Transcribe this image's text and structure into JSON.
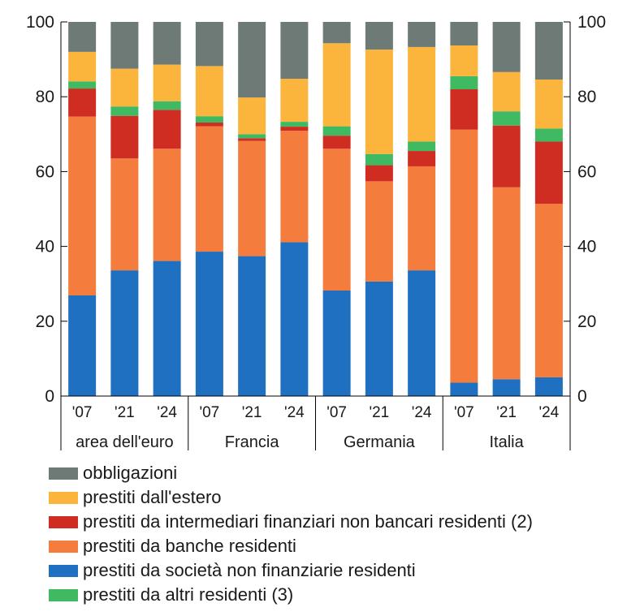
{
  "chart_data": {
    "type": "bar",
    "stacked": true,
    "title": "",
    "xlabel": "",
    "ylabel": "",
    "ylim": [
      0,
      100
    ],
    "yticks": [
      0,
      20,
      40,
      60,
      80,
      100
    ],
    "secondary_axis": true,
    "grid": false,
    "legend_position": "bottom",
    "groups": [
      {
        "name": "area dell'euro",
        "categories": [
          "'07",
          "'21",
          "'24"
        ]
      },
      {
        "name": "Francia",
        "categories": [
          "'07",
          "'21",
          "'24"
        ]
      },
      {
        "name": "Germania",
        "categories": [
          "'07",
          "'21",
          "'24"
        ]
      },
      {
        "name": "Italia",
        "categories": [
          "'07",
          "'21",
          "'24"
        ]
      }
    ],
    "series": [
      {
        "name": "prestiti da società non finanziarie residenti",
        "color": "#1f70c1",
        "values": [
          26.9,
          33.6,
          36.1,
          38.6,
          37.4,
          41.1,
          28.2,
          30.6,
          33.6,
          3.6,
          4.5,
          5.0
        ]
      },
      {
        "name": "prestiti da banche residenti",
        "color": "#f47c3c",
        "values": [
          47.8,
          29.9,
          30.0,
          33.5,
          30.8,
          29.8,
          37.9,
          26.8,
          27.8,
          67.6,
          51.3,
          46.4
        ]
      },
      {
        "name": "prestiti da intermediari finanziari non bancari residenti (2)",
        "color": "#d02d22",
        "values": [
          7.5,
          11.4,
          10.4,
          1.0,
          0.7,
          1.1,
          3.5,
          4.3,
          4.1,
          10.8,
          16.5,
          16.6
        ]
      },
      {
        "name": "prestiti da altri residenti (3)",
        "color": "#3fb962",
        "values": [
          1.9,
          2.5,
          2.3,
          1.7,
          1.1,
          1.3,
          2.5,
          3.0,
          2.5,
          3.5,
          3.8,
          3.5
        ]
      },
      {
        "name": "prestiti dall'estero",
        "color": "#fbb43c",
        "values": [
          7.9,
          10.1,
          9.8,
          13.4,
          9.8,
          11.5,
          22.2,
          27.9,
          25.3,
          8.2,
          10.5,
          13.1
        ]
      },
      {
        "name": "obbligazioni",
        "color": "#6d7a76",
        "values": [
          8.0,
          12.5,
          11.4,
          11.8,
          20.2,
          15.2,
          5.7,
          7.4,
          6.7,
          6.3,
          13.4,
          15.4
        ]
      }
    ],
    "legend_order": [
      "obbligazioni",
      "prestiti dall'estero",
      "prestiti da intermediari finanziari non bancari residenti (2)",
      "prestiti da banche residenti",
      "prestiti da società non finanziarie residenti",
      "prestiti da altri residenti (3)"
    ]
  }
}
